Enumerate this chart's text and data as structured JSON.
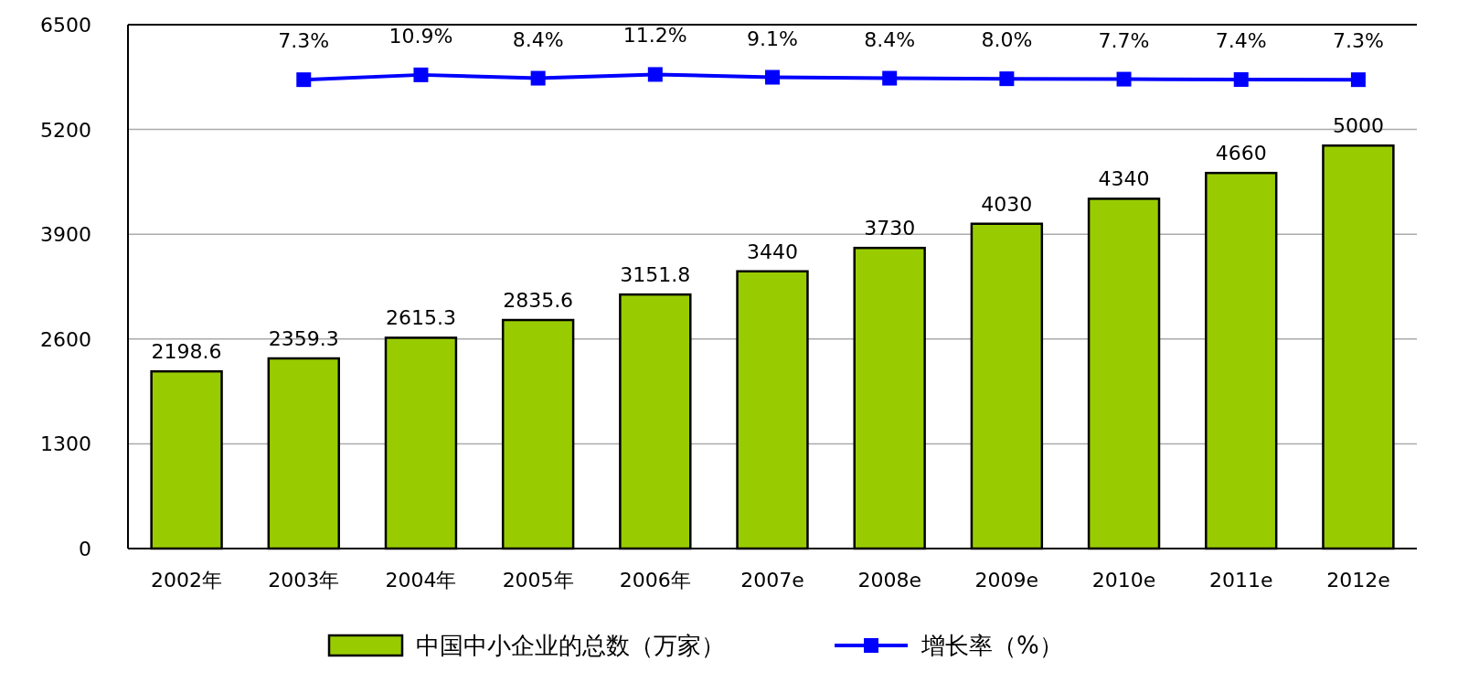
{
  "chart_data": {
    "type": "bar",
    "categories": [
      "2002年",
      "2003年",
      "2004年",
      "2005年",
      "2006年",
      "2007e",
      "2008e",
      "2009e",
      "2010e",
      "2011e",
      "2012e"
    ],
    "ylim": [
      0,
      6500
    ],
    "yticks": [
      0,
      1300,
      2600,
      3900,
      5200,
      6500
    ],
    "grid": "y",
    "legend": "bottom",
    "data_labels": true,
    "series": [
      {
        "name": "中国中小企业的总数（万家）",
        "color": "#99cc00",
        "values": [
          2198.6,
          2359.3,
          2615.3,
          2835.6,
          3151.8,
          3440,
          3730,
          4030,
          4340,
          4660,
          5000
        ]
      },
      {
        "name": "增长率（%）",
        "type": "line",
        "axis": "y2",
        "color": "#0000ff",
        "marker": "square",
        "value_labels": [
          null,
          "7.3%",
          "10.9%",
          "8.4%",
          "11.2%",
          "9.1%",
          "8.4%",
          "8.0%",
          "7.7%",
          "7.4%",
          "7.3%"
        ],
        "values": [
          null,
          7.3,
          10.9,
          8.4,
          11.2,
          9.1,
          8.4,
          8.0,
          7.7,
          7.4,
          7.3
        ]
      }
    ]
  }
}
